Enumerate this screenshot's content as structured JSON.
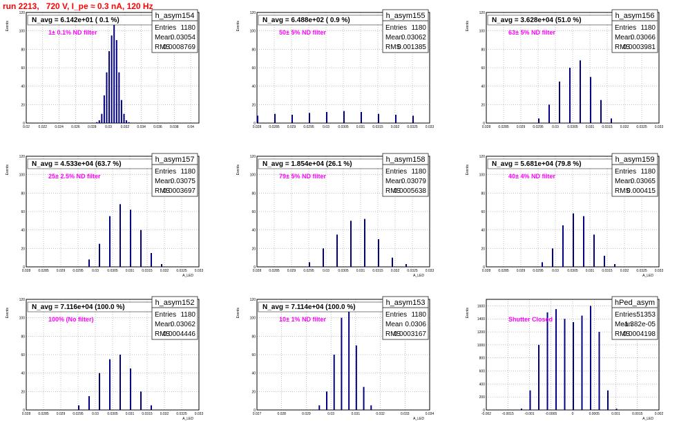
{
  "run_title": "run 2213,   720 V, I_pe ≈ 0.3 nA, 120 Hz",
  "colors": {
    "hist_line": "#000080",
    "grid": "#000000",
    "annotation": "#ff00ff",
    "title": "#ff0000",
    "background": "#ffffff"
  },
  "chart_data": [
    {
      "type": "histogram",
      "hist_name": "h_asym154",
      "navg_label": "N_avg = 6.142e+01 ( 0.1 %)",
      "filter_label": "1± 0.1% ND filter",
      "stats": [
        [
          "Entries",
          "1180"
        ],
        [
          "Mean",
          "0.03054"
        ],
        [
          "RMS",
          "0.0008769"
        ]
      ],
      "ylabel": "Events",
      "xlabel": "",
      "xlim": [
        0.02,
        0.041
      ],
      "ylim": [
        0,
        120
      ],
      "xticks": [
        "0.02",
        "0.022",
        "0.024",
        "0.026",
        "0.028",
        "0.03",
        "0.032",
        "0.034",
        "0.036",
        "0.038",
        "0.04"
      ],
      "xtick_values": [
        0.02,
        0.022,
        0.024,
        0.026,
        0.028,
        0.03,
        0.032,
        0.034,
        0.036,
        0.038,
        0.04
      ],
      "yticks": [
        "0",
        "20",
        "40",
        "60",
        "80",
        "100",
        "120"
      ],
      "ytick_values": [
        0,
        20,
        40,
        60,
        80,
        100,
        120
      ],
      "bins": {
        "x": [
          0.0285,
          0.0288,
          0.0291,
          0.0294,
          0.0297,
          0.03,
          0.0303,
          0.0306,
          0.0309,
          0.0312,
          0.0315,
          0.0318,
          0.0321,
          0.0324
        ],
        "y": [
          1,
          3,
          10,
          30,
          55,
          78,
          95,
          110,
          90,
          55,
          25,
          10,
          3,
          1
        ]
      }
    },
    {
      "type": "histogram",
      "hist_name": "h_asym155",
      "navg_label": "N_avg = 6.488e+02 ( 0.9 %)",
      "filter_label": "50± 5% ND filter",
      "stats": [
        [
          "Entries",
          "1180"
        ],
        [
          "Mean",
          "0.03062"
        ],
        [
          "RMS",
          "0.001385"
        ]
      ],
      "ylabel": "Events",
      "xlabel": "",
      "xlim": [
        0.028,
        0.033
      ],
      "ylim": [
        0,
        120
      ],
      "xticks": [
        "0.028",
        "0.0285",
        "0.029",
        "0.0295",
        "0.03",
        "0.0305",
        "0.031",
        "0.0315",
        "0.032",
        "0.0325",
        "0.033"
      ],
      "xtick_values": [
        0.028,
        0.0285,
        0.029,
        0.0295,
        0.03,
        0.0305,
        0.031,
        0.0315,
        0.032,
        0.0325,
        0.033
      ],
      "yticks": [
        "0",
        "20",
        "40",
        "60",
        "80",
        "100",
        "120"
      ],
      "ytick_values": [
        0,
        20,
        40,
        60,
        80,
        100,
        120
      ],
      "bins": {
        "x": [
          0.028,
          0.0285,
          0.029,
          0.0295,
          0.03,
          0.0305,
          0.031,
          0.0315,
          0.032,
          0.0325
        ],
        "y": [
          8,
          10,
          9,
          11,
          12,
          13,
          12,
          10,
          9,
          8
        ]
      }
    },
    {
      "type": "histogram",
      "hist_name": "h_asym156",
      "navg_label": "N_avg = 3.628e+04 (51.0 %)",
      "filter_label": "63± 5% ND filter",
      "stats": [
        [
          "Entries",
          "1180"
        ],
        [
          "Mean",
          "0.03066"
        ],
        [
          "RMS",
          "0.0003981"
        ]
      ],
      "ylabel": "Events",
      "xlabel": "",
      "xlim": [
        0.028,
        0.033
      ],
      "ylim": [
        0,
        120
      ],
      "xticks": [
        "0.028",
        "0.0285",
        "0.029",
        "0.0295",
        "0.03",
        "0.0305",
        "0.031",
        "0.0315",
        "0.032",
        "0.0325",
        "0.033"
      ],
      "xtick_values": [
        0.028,
        0.0285,
        0.029,
        0.0295,
        0.03,
        0.0305,
        0.031,
        0.0315,
        0.032,
        0.0325,
        0.033
      ],
      "yticks": [
        "0",
        "20",
        "40",
        "60",
        "80",
        "100",
        "120"
      ],
      "ytick_values": [
        0,
        20,
        40,
        60,
        80,
        100,
        120
      ],
      "bins": {
        "x": [
          0.0295,
          0.0298,
          0.0301,
          0.0304,
          0.0307,
          0.031,
          0.0313,
          0.0316
        ],
        "y": [
          5,
          20,
          45,
          60,
          68,
          50,
          25,
          5
        ]
      }
    },
    {
      "type": "histogram",
      "hist_name": "h_asym157",
      "navg_label": "N_avg = 4.533e+04 (63.7 %)",
      "filter_label": "25± 2.5% ND filter",
      "stats": [
        [
          "Entries",
          "1180"
        ],
        [
          "Mean",
          "0.03075"
        ],
        [
          "RMS",
          "0.0003697"
        ]
      ],
      "ylabel": "Events",
      "xlabel": "A_LED",
      "xlim": [
        0.028,
        0.033
      ],
      "ylim": [
        0,
        120
      ],
      "xticks": [
        "0.028",
        "0.0285",
        "0.029",
        "0.0295",
        "0.03",
        "0.0305",
        "0.031",
        "0.0315",
        "0.032",
        "0.0325",
        "0.033"
      ],
      "xtick_values": [
        0.028,
        0.0285,
        0.029,
        0.0295,
        0.03,
        0.0305,
        0.031,
        0.0315,
        0.032,
        0.0325,
        0.033
      ],
      "yticks": [
        "0",
        "20",
        "40",
        "60",
        "80",
        "100",
        "120"
      ],
      "ytick_values": [
        0,
        20,
        40,
        60,
        80,
        100,
        120
      ],
      "bins": {
        "x": [
          0.0298,
          0.0301,
          0.0304,
          0.0307,
          0.031,
          0.0313,
          0.0316,
          0.0319
        ],
        "y": [
          8,
          25,
          55,
          68,
          62,
          40,
          15,
          3
        ]
      }
    },
    {
      "type": "histogram",
      "hist_name": "h_asym158",
      "navg_label": "N_avg = 1.854e+04 (26.1 %)",
      "filter_label": "79± 5% ND filter",
      "stats": [
        [
          "Entries",
          "1180"
        ],
        [
          "Mean",
          "0.03079"
        ],
        [
          "RMS",
          "0.0005638"
        ]
      ],
      "ylabel": "Events",
      "xlabel": "A_LED",
      "xlim": [
        0.028,
        0.033
      ],
      "ylim": [
        0,
        120
      ],
      "xticks": [
        "0.028",
        "0.0285",
        "0.029",
        "0.0295",
        "0.03",
        "0.0305",
        "0.031",
        "0.0315",
        "0.032",
        "0.0325",
        "0.033"
      ],
      "xtick_values": [
        0.028,
        0.0285,
        0.029,
        0.0295,
        0.03,
        0.0305,
        0.031,
        0.0315,
        0.032,
        0.0325,
        0.033
      ],
      "yticks": [
        "0",
        "20",
        "40",
        "60",
        "80",
        "100",
        "120"
      ],
      "ytick_values": [
        0,
        20,
        40,
        60,
        80,
        100,
        120
      ],
      "bins": {
        "x": [
          0.0295,
          0.0299,
          0.0303,
          0.0307,
          0.0311,
          0.0315,
          0.0319,
          0.0323
        ],
        "y": [
          5,
          20,
          35,
          50,
          52,
          30,
          10,
          3
        ]
      }
    },
    {
      "type": "histogram",
      "hist_name": "h_asym159",
      "navg_label": "N_avg = 5.681e+04 (79.8 %)",
      "filter_label": "40± 4% ND filter",
      "stats": [
        [
          "Entries",
          "1180"
        ],
        [
          "Mean",
          "0.03065"
        ],
        [
          "RMS",
          "0.000415"
        ]
      ],
      "ylabel": "Events",
      "xlabel": "A_LED",
      "xlim": [
        0.028,
        0.033
      ],
      "ylim": [
        0,
        120
      ],
      "xticks": [
        "0.028",
        "0.0285",
        "0.029",
        "0.0295",
        "0.03",
        "0.0305",
        "0.031",
        "0.0315",
        "0.032",
        "0.0325",
        "0.033"
      ],
      "xtick_values": [
        0.028,
        0.0285,
        0.029,
        0.0295,
        0.03,
        0.0305,
        0.031,
        0.0315,
        0.032,
        0.0325,
        0.033
      ],
      "yticks": [
        "0",
        "20",
        "40",
        "60",
        "80",
        "100",
        "120"
      ],
      "ytick_values": [
        0,
        20,
        40,
        60,
        80,
        100,
        120
      ],
      "bins": {
        "x": [
          0.0296,
          0.0299,
          0.0302,
          0.0305,
          0.0308,
          0.0311,
          0.0314,
          0.0317
        ],
        "y": [
          5,
          20,
          45,
          58,
          55,
          35,
          12,
          3
        ]
      }
    },
    {
      "type": "histogram",
      "hist_name": "h_asym152",
      "navg_label": "N_avg = 7.116e+04 (100.0 %)",
      "filter_label": "100% (No filter)",
      "stats": [
        [
          "Entries",
          "1180"
        ],
        [
          "Mean",
          "0.03062"
        ],
        [
          "RMS",
          "0.0004446"
        ]
      ],
      "ylabel": "Events",
      "xlabel": "A_LED",
      "xlim": [
        0.028,
        0.033
      ],
      "ylim": [
        0,
        120
      ],
      "xticks": [
        "0.028",
        "0.0285",
        "0.029",
        "0.0295",
        "0.03",
        "0.0305",
        "0.031",
        "0.0315",
        "0.032",
        "0.0325",
        "0.033"
      ],
      "xtick_values": [
        0.028,
        0.0285,
        0.029,
        0.0295,
        0.03,
        0.0305,
        0.031,
        0.0315,
        0.032,
        0.0325,
        0.033
      ],
      "yticks": [
        "0",
        "20",
        "40",
        "60",
        "80",
        "100",
        "120"
      ],
      "ytick_values": [
        0,
        20,
        40,
        60,
        80,
        100,
        120
      ],
      "bins": {
        "x": [
          0.0295,
          0.0298,
          0.0301,
          0.0304,
          0.0307,
          0.031,
          0.0313,
          0.0316
        ],
        "y": [
          5,
          15,
          40,
          55,
          60,
          45,
          20,
          5
        ]
      }
    },
    {
      "type": "histogram",
      "hist_name": "h_asym153",
      "navg_label": "N_avg = 7.114e+04 (100.0 %)",
      "filter_label": "10± 1% ND filter",
      "stats": [
        [
          "Entries",
          "1180"
        ],
        [
          "Mean",
          "0.0306"
        ],
        [
          "RMS",
          "0.0003167"
        ]
      ],
      "ylabel": "Events",
      "xlabel": "A_LED",
      "xlim": [
        0.027,
        0.034
      ],
      "ylim": [
        0,
        120
      ],
      "xticks": [
        "0.027",
        "0.028",
        "0.029",
        "0.03",
        "0.031",
        "0.032",
        "0.033",
        "0.034"
      ],
      "xtick_values": [
        0.027,
        0.028,
        0.029,
        0.03,
        0.031,
        0.032,
        0.033,
        0.034
      ],
      "yticks": [
        "0",
        "20",
        "40",
        "60",
        "80",
        "100",
        "120"
      ],
      "ytick_values": [
        0,
        20,
        40,
        60,
        80,
        100,
        120
      ],
      "bins": {
        "x": [
          0.0295,
          0.0298,
          0.0301,
          0.0304,
          0.0307,
          0.031,
          0.0313,
          0.0316
        ],
        "y": [
          5,
          20,
          60,
          100,
          110,
          70,
          25,
          5
        ]
      }
    },
    {
      "type": "histogram",
      "hist_name": "hPed_asym",
      "navg_label": "",
      "filter_label": "Shutter Closed",
      "stats": [
        [
          "Entries",
          "51353"
        ],
        [
          "Mean",
          "-1.382e-05"
        ],
        [
          "RMS",
          "0.0004198"
        ]
      ],
      "ylabel": "Events",
      "xlabel": "A_LED",
      "xlim": [
        -0.002,
        0.002
      ],
      "ylim": [
        0,
        1700
      ],
      "xticks": [
        "-0.002",
        "-0.0015",
        "-0.001",
        "-0.0005",
        "0",
        "0.0005",
        "0.001",
        "0.0015",
        "0.002"
      ],
      "xtick_values": [
        -0.002,
        -0.0015,
        -0.001,
        -0.0005,
        0,
        0.0005,
        0.001,
        0.0015,
        0.002
      ],
      "yticks": [
        "0",
        "200",
        "400",
        "600",
        "800",
        "1000",
        "1200",
        "1400",
        "1600"
      ],
      "ytick_values": [
        0,
        200,
        400,
        600,
        800,
        1000,
        1200,
        1400,
        1600
      ],
      "bins": {
        "x": [
          -0.0012,
          -0.001,
          -0.0008,
          -0.0006,
          -0.0004,
          -0.0002,
          0,
          0.0002,
          0.0004,
          0.0006,
          0.0008,
          0.001
        ],
        "y": [
          20,
          300,
          1000,
          1500,
          1550,
          1400,
          1350,
          1450,
          1600,
          1200,
          300,
          20
        ]
      }
    }
  ]
}
